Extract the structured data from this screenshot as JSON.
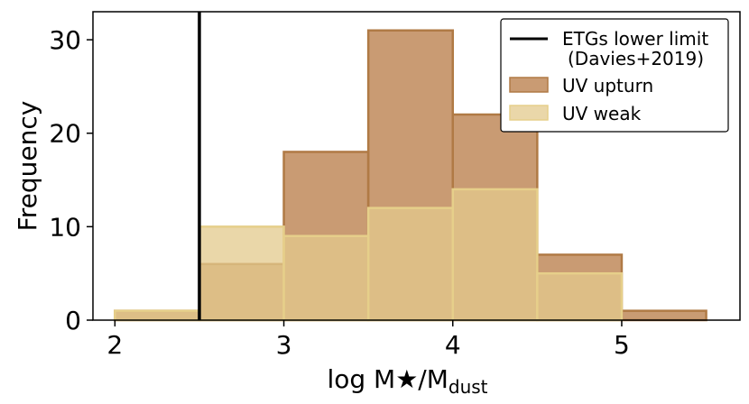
{
  "chart_data": {
    "type": "bar",
    "title": "",
    "xlabel": "log M★/M",
    "xlabel_subscript": "dust",
    "ylabel": "Frequency",
    "xlim": [
      1.87,
      5.7
    ],
    "ylim": [
      0,
      33
    ],
    "xticks": [
      2,
      3,
      4,
      5
    ],
    "yticks": [
      0,
      10,
      20,
      30
    ],
    "bin_edges": [
      2.0,
      2.5,
      3.0,
      3.5,
      4.0,
      4.5,
      5.0,
      5.5
    ],
    "series": [
      {
        "name": "UV upturn",
        "values": [
          1,
          6,
          18,
          31,
          22,
          7,
          1
        ],
        "color": "#c0895a"
      },
      {
        "name": "UV weak",
        "values": [
          1,
          10,
          9,
          12,
          14,
          5,
          0
        ],
        "color": "#e3c98c"
      }
    ],
    "vline": {
      "x": 2.5,
      "label_line1": "ETGs lower limit",
      "label_line2": "(Davies+2019)",
      "color": "#000000"
    },
    "grid": false,
    "legend_position": "top-right"
  }
}
